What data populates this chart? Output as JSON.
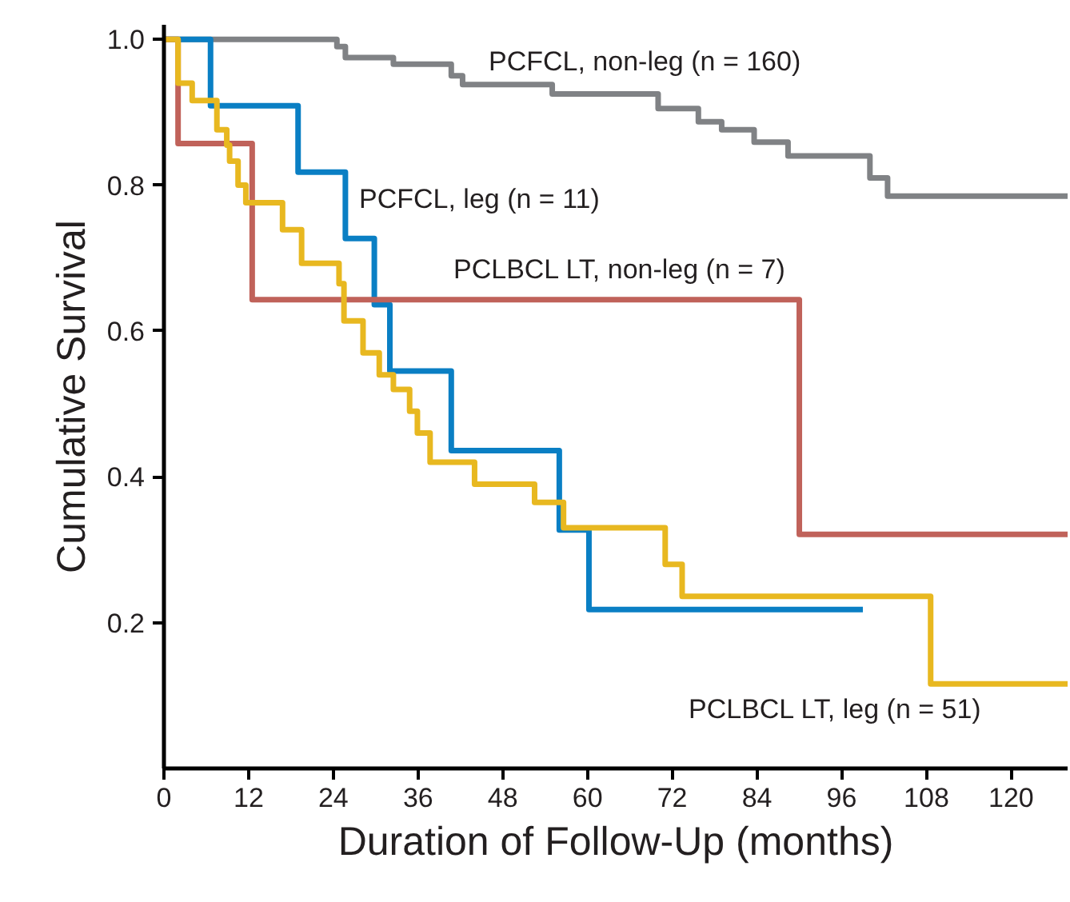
{
  "chart_data": {
    "type": "step",
    "xlabel": "Duration of Follow-Up (months)",
    "ylabel": "Cumulative Survival",
    "xlim": [
      0,
      128
    ],
    "ylim": [
      0,
      1.02
    ],
    "xticks": [
      0,
      12,
      24,
      36,
      48,
      60,
      72,
      84,
      96,
      108,
      120
    ],
    "yticks": [
      0.2,
      0.4,
      0.6,
      0.8,
      {
        "value": 1,
        "label": "1.0"
      }
    ],
    "grid": false,
    "legend": false,
    "marker": "none",
    "line_style": "solid",
    "series": [
      {
        "name": "PCFCL, non-leg (n = 160)",
        "color": "#808285",
        "x": [
          0,
          24.5,
          25.7,
          32.5,
          40.7,
          42.3,
          55,
          70,
          75.7,
          79,
          83.6,
          88.4,
          100,
          102.5,
          128
        ],
        "values": [
          1.0,
          0.99,
          0.975,
          0.966,
          0.95,
          0.938,
          0.925,
          0.905,
          0.887,
          0.876,
          0.859,
          0.84,
          0.81,
          0.785,
          0.785
        ]
      },
      {
        "name": "PCFCL, leg (n = 11)",
        "color": "#0a7fc4",
        "x": [
          0,
          6.6,
          19,
          25.7,
          29.8,
          32,
          40.7,
          56,
          60.2,
          99
        ],
        "values": [
          1.0,
          0.909,
          0.818,
          0.727,
          0.636,
          0.545,
          0.436,
          0.327,
          0.218,
          0.218
        ]
      },
      {
        "name": "PCLBCL LT, non-leg (n = 7)",
        "color": "#c0625a",
        "x": [
          0,
          2,
          12.5,
          90,
          128
        ],
        "values": [
          1.0,
          0.857,
          0.643,
          0.321,
          0.321
        ]
      },
      {
        "name": "PCLBCL LT, leg (n = 51)",
        "color": "#e8b820",
        "x": [
          0,
          2,
          4,
          7.5,
          8.9,
          9.3,
          10.5,
          11.6,
          16.8,
          19.5,
          24.8,
          25.5,
          28.2,
          30.5,
          32.5,
          34.8,
          35.9,
          37.7,
          44,
          52.5,
          56.6,
          71,
          73.4,
          108.6,
          128
        ],
        "values": [
          1.0,
          0.94,
          0.916,
          0.876,
          0.855,
          0.833,
          0.8,
          0.776,
          0.739,
          0.693,
          0.665,
          0.614,
          0.57,
          0.54,
          0.52,
          0.49,
          0.46,
          0.42,
          0.39,
          0.365,
          0.33,
          0.28,
          0.236,
          0.116,
          0.116
        ]
      }
    ]
  }
}
